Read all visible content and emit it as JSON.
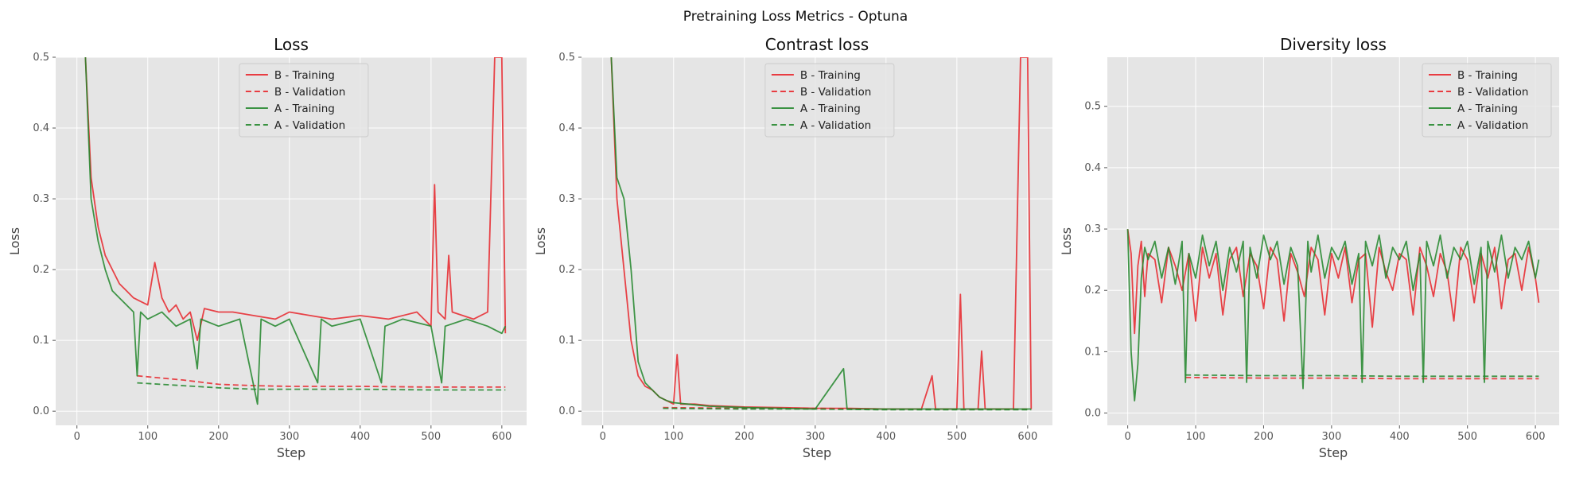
{
  "suptitle": "Pretraining Loss Metrics - Optuna",
  "colors": {
    "background": "#e5e5e5",
    "grid": "#ffffff",
    "b_series": "#e8242a",
    "a_series": "#21862a",
    "trials": "#9a9ae6",
    "tick_text": "#555555",
    "label_text": "#444444"
  },
  "legend_placement": "upper right",
  "chart_data": [
    {
      "type": "line",
      "title": "Loss",
      "xlabel": "Step",
      "ylabel": "Loss",
      "xlim": [
        -30,
        635
      ],
      "ylim": [
        -0.02,
        0.5
      ],
      "xticks": [
        "0",
        "100",
        "200",
        "300",
        "400",
        "500",
        "600"
      ],
      "yticks": [
        "0.0",
        "0.1",
        "0.2",
        "0.3",
        "0.4",
        "0.5"
      ],
      "grid": true,
      "legend": "top-right",
      "series": [
        {
          "name": "B - Training",
          "style": "solid",
          "color_key": "b_series",
          "x": [
            12,
            20,
            30,
            40,
            50,
            60,
            70,
            80,
            90,
            100,
            110,
            120,
            130,
            140,
            150,
            160,
            170,
            180,
            200,
            220,
            250,
            280,
            300,
            330,
            360,
            400,
            440,
            480,
            500,
            505,
            510,
            520,
            525,
            530,
            560,
            580,
            590,
            595,
            600,
            605
          ],
          "y": [
            0.5,
            0.33,
            0.26,
            0.22,
            0.2,
            0.18,
            0.17,
            0.16,
            0.155,
            0.15,
            0.21,
            0.16,
            0.14,
            0.15,
            0.13,
            0.14,
            0.1,
            0.145,
            0.14,
            0.14,
            0.135,
            0.13,
            0.14,
            0.135,
            0.13,
            0.135,
            0.13,
            0.14,
            0.12,
            0.32,
            0.14,
            0.13,
            0.22,
            0.14,
            0.13,
            0.14,
            0.5,
            0.5,
            0.5,
            0.11
          ]
        },
        {
          "name": "B - Validation",
          "style": "dashed",
          "color_key": "b_series",
          "x": [
            85,
            150,
            200,
            250,
            300,
            400,
            500,
            605
          ],
          "y": [
            0.05,
            0.044,
            0.038,
            0.036,
            0.035,
            0.035,
            0.034,
            0.034
          ]
        },
        {
          "name": "A - Training",
          "style": "solid",
          "color_key": "a_series",
          "x": [
            12,
            20,
            30,
            40,
            50,
            60,
            70,
            80,
            85,
            90,
            100,
            120,
            140,
            160,
            170,
            175,
            200,
            230,
            255,
            260,
            280,
            300,
            340,
            345,
            360,
            400,
            430,
            435,
            460,
            500,
            515,
            520,
            550,
            580,
            600,
            605
          ],
          "y": [
            0.5,
            0.3,
            0.24,
            0.2,
            0.17,
            0.16,
            0.15,
            0.14,
            0.05,
            0.14,
            0.13,
            0.14,
            0.12,
            0.13,
            0.06,
            0.13,
            0.12,
            0.13,
            0.01,
            0.13,
            0.12,
            0.13,
            0.04,
            0.13,
            0.12,
            0.13,
            0.04,
            0.12,
            0.13,
            0.12,
            0.04,
            0.12,
            0.13,
            0.12,
            0.11,
            0.12
          ]
        },
        {
          "name": "A - Validation",
          "style": "dashed",
          "color_key": "a_series",
          "x": [
            85,
            150,
            200,
            250,
            300,
            400,
            500,
            605
          ],
          "y": [
            0.04,
            0.036,
            0.033,
            0.031,
            0.031,
            0.031,
            0.03,
            0.03
          ]
        }
      ]
    },
    {
      "type": "line",
      "title": "Contrast loss",
      "xlabel": "Step",
      "ylabel": "Loss",
      "xlim": [
        -30,
        635
      ],
      "ylim": [
        -0.02,
        0.5
      ],
      "xticks": [
        "0",
        "100",
        "200",
        "300",
        "400",
        "500",
        "600"
      ],
      "yticks": [
        "0.0",
        "0.1",
        "0.2",
        "0.3",
        "0.4",
        "0.5"
      ],
      "grid": true,
      "legend": "top-right",
      "series": [
        {
          "name": "B - Training",
          "style": "solid",
          "color_key": "b_series",
          "x": [
            12,
            20,
            30,
            40,
            50,
            60,
            70,
            80,
            90,
            100,
            105,
            110,
            130,
            150,
            200,
            250,
            300,
            350,
            400,
            450,
            465,
            470,
            500,
            505,
            510,
            530,
            535,
            540,
            580,
            590,
            595,
            600,
            605
          ],
          "y": [
            0.5,
            0.3,
            0.2,
            0.1,
            0.05,
            0.035,
            0.03,
            0.02,
            0.015,
            0.01,
            0.08,
            0.01,
            0.01,
            0.008,
            0.006,
            0.005,
            0.004,
            0.004,
            0.003,
            0.003,
            0.05,
            0.003,
            0.003,
            0.165,
            0.003,
            0.003,
            0.085,
            0.003,
            0.003,
            0.5,
            0.5,
            0.5,
            0.003
          ]
        },
        {
          "name": "B - Validation",
          "style": "dashed",
          "color_key": "b_series",
          "x": [
            85,
            200,
            300,
            400,
            500,
            605
          ],
          "y": [
            0.005,
            0.004,
            0.004,
            0.003,
            0.003,
            0.003
          ]
        },
        {
          "name": "A - Training",
          "style": "solid",
          "color_key": "a_series",
          "x": [
            12,
            20,
            30,
            40,
            50,
            60,
            70,
            80,
            90,
            100,
            120,
            150,
            200,
            250,
            300,
            340,
            345,
            350,
            400,
            500,
            600,
            605
          ],
          "y": [
            0.5,
            0.33,
            0.3,
            0.2,
            0.07,
            0.04,
            0.03,
            0.02,
            0.015,
            0.012,
            0.01,
            0.007,
            0.005,
            0.004,
            0.003,
            0.06,
            0.003,
            0.003,
            0.003,
            0.003,
            0.003,
            0.003
          ]
        },
        {
          "name": "A - Validation",
          "style": "dashed",
          "color_key": "a_series",
          "x": [
            85,
            200,
            300,
            400,
            500,
            605
          ],
          "y": [
            0.004,
            0.003,
            0.003,
            0.002,
            0.002,
            0.002
          ]
        }
      ]
    },
    {
      "type": "line",
      "title": "Diversity loss",
      "xlabel": "Step",
      "ylabel": "Loss",
      "xlim": [
        -30,
        635
      ],
      "ylim": [
        -0.02,
        0.58
      ],
      "xticks": [
        "0",
        "100",
        "200",
        "300",
        "400",
        "500",
        "600"
      ],
      "yticks": [
        "0.0",
        "0.1",
        "0.2",
        "0.3",
        "0.4",
        "0.5"
      ],
      "grid": true,
      "legend": "top-right",
      "series": [
        {
          "name": "B - Training",
          "style": "solid",
          "color_key": "b_series",
          "x": [
            0,
            5,
            10,
            15,
            20,
            25,
            30,
            40,
            50,
            60,
            70,
            80,
            90,
            100,
            110,
            120,
            130,
            140,
            150,
            160,
            170,
            180,
            190,
            200,
            210,
            220,
            230,
            240,
            250,
            260,
            270,
            280,
            290,
            300,
            310,
            320,
            330,
            340,
            350,
            360,
            370,
            380,
            390,
            400,
            410,
            420,
            430,
            440,
            450,
            460,
            470,
            480,
            490,
            500,
            510,
            520,
            530,
            540,
            550,
            560,
            570,
            580,
            590,
            600,
            605
          ],
          "y": [
            0.3,
            0.26,
            0.13,
            0.24,
            0.28,
            0.19,
            0.26,
            0.25,
            0.18,
            0.27,
            0.24,
            0.2,
            0.26,
            0.15,
            0.27,
            0.22,
            0.26,
            0.16,
            0.25,
            0.27,
            0.19,
            0.26,
            0.24,
            0.17,
            0.27,
            0.25,
            0.15,
            0.26,
            0.23,
            0.19,
            0.27,
            0.25,
            0.16,
            0.26,
            0.22,
            0.27,
            0.18,
            0.25,
            0.26,
            0.14,
            0.27,
            0.23,
            0.2,
            0.26,
            0.25,
            0.16,
            0.27,
            0.24,
            0.19,
            0.26,
            0.23,
            0.15,
            0.27,
            0.25,
            0.18,
            0.26,
            0.22,
            0.27,
            0.17,
            0.25,
            0.26,
            0.2,
            0.27,
            0.22,
            0.18
          ]
        },
        {
          "name": "B - Validation",
          "style": "dashed",
          "color_key": "b_series",
          "x": [
            85,
            200,
            300,
            400,
            500,
            605
          ],
          "y": [
            0.058,
            0.057,
            0.057,
            0.056,
            0.056,
            0.056
          ]
        },
        {
          "name": "A - Training",
          "style": "solid",
          "color_key": "a_series",
          "x": [
            0,
            5,
            10,
            15,
            20,
            25,
            30,
            40,
            50,
            60,
            70,
            80,
            85,
            90,
            100,
            110,
            120,
            130,
            140,
            150,
            160,
            170,
            175,
            180,
            190,
            200,
            210,
            220,
            230,
            240,
            250,
            258,
            265,
            270,
            280,
            290,
            300,
            310,
            320,
            330,
            340,
            345,
            350,
            360,
            370,
            380,
            390,
            400,
            410,
            420,
            430,
            435,
            440,
            450,
            460,
            470,
            480,
            490,
            500,
            510,
            520,
            525,
            530,
            540,
            550,
            560,
            570,
            580,
            590,
            600,
            605
          ],
          "y": [
            0.3,
            0.1,
            0.02,
            0.08,
            0.22,
            0.27,
            0.25,
            0.28,
            0.22,
            0.27,
            0.21,
            0.28,
            0.05,
            0.26,
            0.22,
            0.29,
            0.24,
            0.28,
            0.2,
            0.27,
            0.23,
            0.28,
            0.05,
            0.27,
            0.22,
            0.29,
            0.25,
            0.28,
            0.21,
            0.27,
            0.24,
            0.04,
            0.28,
            0.23,
            0.29,
            0.22,
            0.27,
            0.25,
            0.28,
            0.21,
            0.26,
            0.05,
            0.28,
            0.24,
            0.29,
            0.22,
            0.27,
            0.25,
            0.28,
            0.2,
            0.26,
            0.05,
            0.28,
            0.24,
            0.29,
            0.22,
            0.27,
            0.25,
            0.28,
            0.21,
            0.27,
            0.05,
            0.28,
            0.23,
            0.29,
            0.22,
            0.27,
            0.25,
            0.28,
            0.22,
            0.25
          ]
        },
        {
          "name": "A - Validation",
          "style": "dashed",
          "color_key": "a_series",
          "x": [
            85,
            200,
            300,
            400,
            500,
            605
          ],
          "y": [
            0.062,
            0.061,
            0.061,
            0.06,
            0.06,
            0.06
          ]
        }
      ]
    }
  ]
}
